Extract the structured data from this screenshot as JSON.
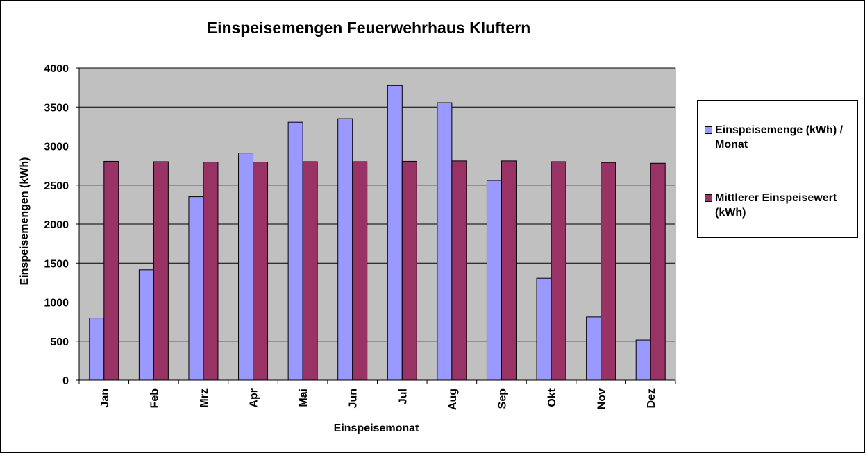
{
  "chart_data": {
    "type": "bar",
    "title": "Einspeisemengen Feuerwehrhaus Kluftern",
    "xlabel": "Einspeisemonat",
    "ylabel": "Einspeisemengen (kWh)",
    "categories": [
      "Jan",
      "Feb",
      "Mrz",
      "Apr",
      "Mai",
      "Jun",
      "Jul",
      "Aug",
      "Sep",
      "Okt",
      "Nov",
      "Dez"
    ],
    "ylim": [
      0,
      4000
    ],
    "yticks": [
      0,
      500,
      1000,
      1500,
      2000,
      2500,
      3000,
      3500,
      4000
    ],
    "grid": true,
    "legend_position": "right",
    "plot_background": "#c0c0c0",
    "series": [
      {
        "name": "Einspeisemenge (kWh) / Monat",
        "color": "#9999ff",
        "values": [
          795,
          1415,
          2350,
          2910,
          3305,
          3350,
          3775,
          3555,
          2560,
          1305,
          810,
          515
        ]
      },
      {
        "name": "Mittlerer Einspeisewert (kWh)",
        "color": "#993366",
        "values": [
          2805,
          2800,
          2795,
          2795,
          2800,
          2800,
          2805,
          2810,
          2810,
          2800,
          2790,
          2780
        ]
      }
    ]
  }
}
